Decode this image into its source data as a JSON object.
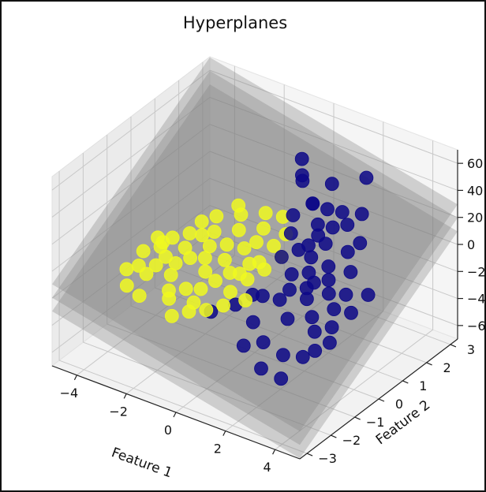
{
  "chart_data": {
    "type": "scatter-3d",
    "title": "Hyperplanes",
    "xlabel": "Feature 1",
    "ylabel": "Feature 2",
    "zlabel": "",
    "xlim": [
      -5,
      5
    ],
    "ylim": [
      -3.3,
      3.3
    ],
    "zlim": [
      -70,
      70
    ],
    "x_ticks": [
      "−4",
      "−2",
      "0",
      "2",
      "4"
    ],
    "y_ticks": [
      "−3",
      "−2",
      "−1",
      "0",
      "1",
      "2",
      "3"
    ],
    "z_ticks": [
      "−60",
      "−40",
      "−20",
      "0",
      "20",
      "40",
      "60"
    ],
    "grid": true,
    "colors": {
      "class_0": "#0d0887",
      "class_1": "#f0f921",
      "plane": "#808080"
    },
    "series": [
      {
        "class": 0,
        "points": [
          [
            0.6,
            1.8,
            20
          ],
          [
            0.8,
            2.4,
            28
          ],
          [
            -0.6,
            2.6,
            22
          ],
          [
            -0.2,
            2.2,
            26
          ],
          [
            1.6,
            0.6,
            -8
          ],
          [
            1.2,
            1.0,
            4
          ],
          [
            1.9,
            0.2,
            -12
          ],
          [
            2.2,
            0.8,
            -2
          ],
          [
            2.6,
            0.4,
            -14
          ],
          [
            3.0,
            0.2,
            -20
          ],
          [
            2.8,
            -0.4,
            -30
          ],
          [
            3.2,
            -0.8,
            -36
          ],
          [
            1.9,
            -0.6,
            -24
          ],
          [
            1.5,
            -1.2,
            -36
          ],
          [
            0.9,
            -1.4,
            -40
          ],
          [
            1.2,
            -0.2,
            -20
          ],
          [
            0.5,
            0.6,
            -4
          ],
          [
            1.0,
            1.6,
            10
          ],
          [
            1.7,
            1.2,
            6
          ],
          [
            2.4,
            1.4,
            2
          ],
          [
            2.0,
            1.8,
            14
          ],
          [
            0.4,
            2.0,
            16
          ],
          [
            1.8,
            2.8,
            34
          ],
          [
            2.9,
            1.0,
            -4
          ],
          [
            3.5,
            0.4,
            -22
          ],
          [
            2.3,
            -1.2,
            -40
          ],
          [
            3.6,
            -0.6,
            -30
          ],
          [
            1.4,
            0.0,
            -14
          ],
          [
            0.7,
            -0.4,
            -18
          ],
          [
            1.1,
            0.4,
            -10
          ],
          [
            2.1,
            0.0,
            -16
          ],
          [
            2.5,
            -0.2,
            -24
          ],
          [
            3.3,
            -0.2,
            -26
          ],
          [
            0.9,
            0.9,
            0
          ],
          [
            1.6,
            1.6,
            12
          ],
          [
            2.7,
            1.6,
            8
          ],
          [
            3.1,
            0.6,
            -14
          ],
          [
            0.3,
            1.2,
            4
          ],
          [
            -0.3,
            -0.5,
            -30
          ],
          [
            -1.0,
            -0.8,
            -36
          ],
          [
            0.1,
            -0.2,
            -24
          ],
          [
            1.8,
            -1.6,
            -48
          ],
          [
            2.6,
            -1.6,
            -50
          ],
          [
            1.3,
            1.3,
            8
          ],
          [
            2.2,
            2.2,
            18
          ],
          [
            0.0,
            1.6,
            10
          ],
          [
            -0.8,
            2.8,
            30
          ],
          [
            1.0,
            2.0,
            16
          ],
          [
            1.6,
            2.0,
            18
          ],
          [
            2.0,
            0.4,
            -10
          ],
          [
            3.8,
            0.8,
            -12
          ],
          [
            2.9,
            -1.0,
            -40
          ],
          [
            0.8,
            -0.9,
            -30
          ],
          [
            1.5,
            0.8,
            0
          ],
          [
            2.4,
            0.6,
            -8
          ]
        ]
      },
      {
        "class": 1,
        "points": [
          [
            -4.3,
            -0.4,
            -30
          ],
          [
            -4.0,
            0.2,
            -22
          ],
          [
            -3.6,
            0.0,
            -24
          ],
          [
            -3.2,
            0.4,
            -20
          ],
          [
            -2.8,
            0.2,
            -22
          ],
          [
            -2.4,
            0.6,
            -16
          ],
          [
            -2.0,
            0.0,
            -24
          ],
          [
            -1.6,
            0.4,
            -18
          ],
          [
            -1.2,
            0.8,
            -12
          ],
          [
            -0.8,
            0.2,
            -20
          ],
          [
            -0.4,
            0.6,
            -14
          ],
          [
            0.0,
            0.4,
            -14
          ],
          [
            -3.8,
            -0.6,
            -30
          ],
          [
            -3.0,
            -0.4,
            -28
          ],
          [
            -2.2,
            -0.6,
            -30
          ],
          [
            -1.4,
            -0.2,
            -24
          ],
          [
            -0.6,
            -0.4,
            -24
          ],
          [
            -4.5,
            0.0,
            -26
          ],
          [
            -3.4,
            0.8,
            -16
          ],
          [
            -2.6,
            1.0,
            -12
          ],
          [
            -1.8,
            1.2,
            -8
          ],
          [
            -1.0,
            1.4,
            -4
          ],
          [
            -0.2,
            1.0,
            -6
          ],
          [
            -4.2,
            -1.0,
            -36
          ],
          [
            -3.5,
            -1.2,
            -36
          ],
          [
            -2.5,
            -1.0,
            -34
          ],
          [
            -1.5,
            -1.2,
            -34
          ],
          [
            -0.5,
            -0.8,
            -28
          ],
          [
            -2.9,
            1.4,
            -8
          ],
          [
            -2.1,
            1.6,
            -4
          ],
          [
            -1.3,
            1.8,
            0
          ],
          [
            -0.6,
            1.8,
            2
          ],
          [
            -4.6,
            -0.6,
            -32
          ],
          [
            -3.9,
            0.6,
            -20
          ],
          [
            -3.1,
            -0.1,
            -24
          ],
          [
            -2.3,
            0.3,
            -20
          ],
          [
            -1.7,
            -0.5,
            -28
          ],
          [
            -1.1,
            0.1,
            -20
          ],
          [
            -0.3,
            0.0,
            -18
          ],
          [
            0.3,
            0.8,
            -8
          ],
          [
            -3.3,
            1.2,
            -12
          ],
          [
            -2.7,
            -0.8,
            -32
          ],
          [
            -1.9,
            0.8,
            -14
          ],
          [
            -0.9,
            1.0,
            -8
          ],
          [
            -4.1,
            0.4,
            -22
          ],
          [
            -3.7,
            -0.3,
            -27
          ],
          [
            -2.0,
            -1.4,
            -38
          ],
          [
            -1.0,
            -1.0,
            -32
          ],
          [
            0.2,
            -0.6,
            -22
          ],
          [
            -0.1,
            1.4,
            -2
          ],
          [
            -2.4,
            1.8,
            -2
          ],
          [
            -1.6,
            -0.9,
            -32
          ],
          [
            -3.0,
            0.9,
            -16
          ],
          [
            -4.4,
            0.5,
            -22
          ],
          [
            -0.7,
            0.5,
            -16
          ]
        ]
      }
    ],
    "planes": [
      {
        "z_offset": 0,
        "slope_x": -4,
        "slope_y": 12
      },
      {
        "z_offset": -10,
        "slope_x": -4,
        "slope_y": 12
      },
      {
        "z_offset": 10,
        "slope_x": -4,
        "slope_y": 12
      }
    ]
  }
}
